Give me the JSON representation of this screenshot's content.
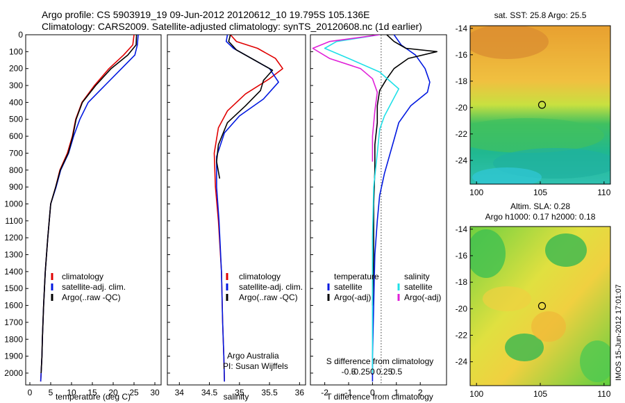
{
  "header": {
    "line1": "Argo profile: CS 5903919_19 09-Jun-2012 20120612_10 19.795S 105.136E",
    "line2": "Climatology: CARS2009. Satellite-adjusted climatology: synTS_20120608.nc (1d earlier)"
  },
  "colors": {
    "climatology": "#e00000",
    "satellite": "#0018e0",
    "argo": "#000000",
    "sal_satellite": "#20e0e8",
    "sal_argo": "#e020d8"
  },
  "chart_data": [
    {
      "type": "line",
      "panel": "temperature",
      "xlabel": "temperature (deg C)",
      "ylabel": "",
      "xlim": [
        -1,
        31.5
      ],
      "ylim": [
        2070,
        0
      ],
      "xticks": [
        0,
        5,
        10,
        15,
        20,
        25,
        30
      ],
      "yticks": [
        0,
        100,
        200,
        300,
        400,
        500,
        600,
        700,
        800,
        900,
        1000,
        1100,
        1200,
        1300,
        1400,
        1500,
        1600,
        1700,
        1800,
        1900,
        2000
      ],
      "legend": [
        "climatology",
        "satellite-adj. clim.",
        "Argo(..raw -QC)"
      ],
      "series": [
        {
          "name": "climatology",
          "color_key": "climatology",
          "x": [
            25.0,
            24.7,
            22.5,
            19.0,
            15.5,
            12.5,
            11.0,
            10.2,
            9.0,
            7.2,
            6.2,
            5.0,
            4.3,
            3.7,
            3.3,
            3.0,
            2.9,
            2.7,
            2.6
          ],
          "y": [
            0,
            60,
            120,
            200,
            300,
            400,
            500,
            600,
            700,
            800,
            900,
            1000,
            1200,
            1400,
            1600,
            1800,
            1900,
            2000,
            2050
          ]
        },
        {
          "name": "satellite-adj. clim.",
          "color_key": "satellite",
          "x": [
            26.0,
            25.8,
            25.2,
            22.0,
            18.0,
            14.0,
            12.0,
            10.5,
            9.3,
            7.4,
            6.3,
            5.0,
            4.3,
            3.7,
            3.3,
            3.0,
            2.9,
            2.7,
            2.6
          ],
          "y": [
            0,
            60,
            120,
            200,
            300,
            400,
            500,
            600,
            700,
            800,
            900,
            1000,
            1200,
            1400,
            1600,
            1800,
            1900,
            2000,
            2050
          ]
        },
        {
          "name": "Argo(..raw -QC)",
          "color_key": "argo",
          "x": [
            25.6,
            25.5,
            23.5,
            19.5,
            15.8,
            12.6,
            11.1,
            10.3,
            9.2,
            7.3,
            6.2,
            5.0,
            4.3,
            3.7,
            3.3,
            3.0,
            2.9,
            2.7
          ],
          "y": [
            0,
            60,
            120,
            200,
            300,
            400,
            500,
            600,
            700,
            800,
            900,
            1000,
            1200,
            1400,
            1600,
            1800,
            1900,
            2000
          ]
        }
      ]
    },
    {
      "type": "line",
      "panel": "salinity",
      "xlabel": "salinity",
      "ylabel": "",
      "xlim": [
        33.8,
        36.1
      ],
      "ylim": [
        2070,
        0
      ],
      "xticks": [
        34,
        34.5,
        35,
        35.5,
        36
      ],
      "legend": [
        "climatology",
        "satellite-adj. clim.",
        "Argo(..raw -QC)"
      ],
      "annotations": [
        "Argo Australia",
        "PI: Susan Wijffels"
      ],
      "series": [
        {
          "name": "climatology",
          "color_key": "climatology",
          "x": [
            34.85,
            34.95,
            35.3,
            35.6,
            35.72,
            35.5,
            35.1,
            34.8,
            34.65,
            34.58,
            34.6,
            34.65,
            34.7,
            34.72,
            34.74,
            34.75
          ],
          "y": [
            0,
            40,
            80,
            140,
            200,
            260,
            350,
            450,
            550,
            700,
            900,
            1100,
            1400,
            1700,
            1900,
            2050
          ]
        },
        {
          "name": "satellite-adj. clim.",
          "color_key": "satellite",
          "x": [
            34.8,
            34.78,
            34.9,
            35.2,
            35.5,
            35.65,
            35.4,
            35.0,
            34.75,
            34.62,
            34.62,
            34.66,
            34.7,
            34.72,
            34.74,
            34.75
          ],
          "y": [
            0,
            40,
            80,
            140,
            200,
            280,
            380,
            480,
            580,
            720,
            900,
            1100,
            1400,
            1700,
            1900,
            2050
          ]
        },
        {
          "name": "Argo(..raw -QC)",
          "color_key": "argo",
          "x": [
            34.85,
            34.82,
            34.95,
            35.25,
            35.55,
            35.4,
            35.35,
            35.1,
            34.8,
            34.65,
            34.62,
            34.67
          ],
          "y": [
            0,
            40,
            90,
            150,
            210,
            270,
            330,
            420,
            520,
            650,
            750,
            850
          ]
        }
      ]
    },
    {
      "type": "line",
      "panel": "difference",
      "xlabel": "T difference from climatology",
      "xlabel2": "S difference from climatology",
      "xlim": [
        -2.6,
        3.1
      ],
      "ylim": [
        2070,
        0
      ],
      "xticks": [
        -2,
        -1,
        0,
        1,
        2
      ],
      "xticks_top": [
        -0.5,
        -0.25,
        0,
        0.25,
        0.5
      ],
      "legend_left_title": "temperature",
      "legend_right_title": "salinity",
      "legend": [
        "satellite",
        "Argo(-adj)",
        "satellite",
        "Argo(-adj)"
      ],
      "series": [
        {
          "name": "temperature satellite",
          "color_key": "satellite",
          "x": [
            0.9,
            1.2,
            1.8,
            2.2,
            2.4,
            2.3,
            1.6,
            1.1,
            0.9,
            0.7,
            0.5,
            0.3,
            0.2,
            0.1,
            0.05,
            0.0,
            0.0
          ],
          "y": [
            0,
            60,
            120,
            200,
            280,
            340,
            420,
            520,
            620,
            720,
            820,
            950,
            1100,
            1300,
            1600,
            1900,
            2050
          ]
        },
        {
          "name": "temperature Argo(-adj)",
          "color_key": "argo",
          "x": [
            0.6,
            0.9,
            1.4,
            2.7,
            1.5,
            0.9,
            0.6,
            0.3,
            0.2,
            0.2,
            0.1,
            0.1,
            0.05,
            0.05,
            0.0
          ],
          "y": [
            0,
            40,
            80,
            100,
            140,
            200,
            260,
            330,
            420,
            520,
            650,
            800,
            1000,
            1300,
            1600
          ]
        },
        {
          "name": "salinity satellite",
          "color_key": "sal_satellite",
          "x": [
            0.3,
            -1.5,
            -2.0,
            -1.0,
            0.3,
            1.1,
            0.8,
            0.5,
            0.3,
            0.2,
            0.05,
            0.0,
            0.0,
            0.0
          ],
          "y": [
            0,
            40,
            80,
            140,
            220,
            320,
            400,
            480,
            560,
            700,
            900,
            1200,
            1600,
            2000
          ]
        },
        {
          "name": "salinity Argo(-adj)",
          "color_key": "sal_argo",
          "x": [
            0.3,
            -1.8,
            -2.5,
            -1.8,
            -0.5,
            0.0,
            0.2,
            0.1,
            0.0,
            0.0
          ],
          "y": [
            0,
            40,
            80,
            140,
            200,
            260,
            340,
            450,
            600,
            750
          ]
        }
      ]
    },
    {
      "type": "heatmap",
      "panel": "sst_map",
      "title": "sat. SST: 25.8 Argo: 25.5",
      "xlim": [
        99.5,
        110.5
      ],
      "ylim": [
        -25.8,
        -13.8
      ],
      "xticks": [
        100,
        105,
        110
      ],
      "yticks": [
        -14,
        -16,
        -18,
        -20,
        -22,
        -24
      ],
      "marker": {
        "x": 105.136,
        "y": -19.795
      }
    },
    {
      "type": "heatmap",
      "panel": "sla_map",
      "title": "Altim. SLA: 0.28",
      "subtitle": "Argo h1000: 0.17 h2000: 0.18",
      "xlim": [
        99.5,
        110.5
      ],
      "ylim": [
        -25.8,
        -13.8
      ],
      "xticks": [
        100,
        105,
        110
      ],
      "yticks": [
        -14,
        -16,
        -18,
        -20,
        -22,
        -24
      ],
      "marker": {
        "x": 105.136,
        "y": -19.795
      }
    }
  ],
  "watermark": "IMOS 15-Jun-2012 17:01:07"
}
